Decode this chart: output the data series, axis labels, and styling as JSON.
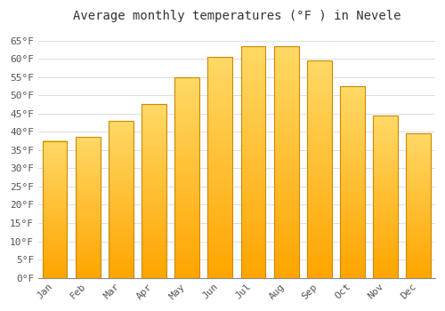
{
  "title": "Average monthly temperatures (°F ) in Nevele",
  "months": [
    "Jan",
    "Feb",
    "Mar",
    "Apr",
    "May",
    "Jun",
    "Jul",
    "Aug",
    "Sep",
    "Oct",
    "Nov",
    "Dec"
  ],
  "values": [
    37.5,
    38.5,
    43.0,
    47.5,
    55.0,
    60.5,
    63.5,
    63.5,
    59.5,
    52.5,
    44.5,
    39.5
  ],
  "bar_color_top": "#FFD966",
  "bar_color_bottom": "#FFA500",
  "bar_edge_color": "#CC8800",
  "background_color": "#FFFFFF",
  "plot_bg_color": "#FFFFFF",
  "grid_color": "#DDDDDD",
  "text_color": "#555555",
  "title_color": "#333333",
  "ylim": [
    0,
    68
  ],
  "yticks": [
    0,
    5,
    10,
    15,
    20,
    25,
    30,
    35,
    40,
    45,
    50,
    55,
    60,
    65
  ],
  "title_fontsize": 10,
  "tick_fontsize": 8
}
